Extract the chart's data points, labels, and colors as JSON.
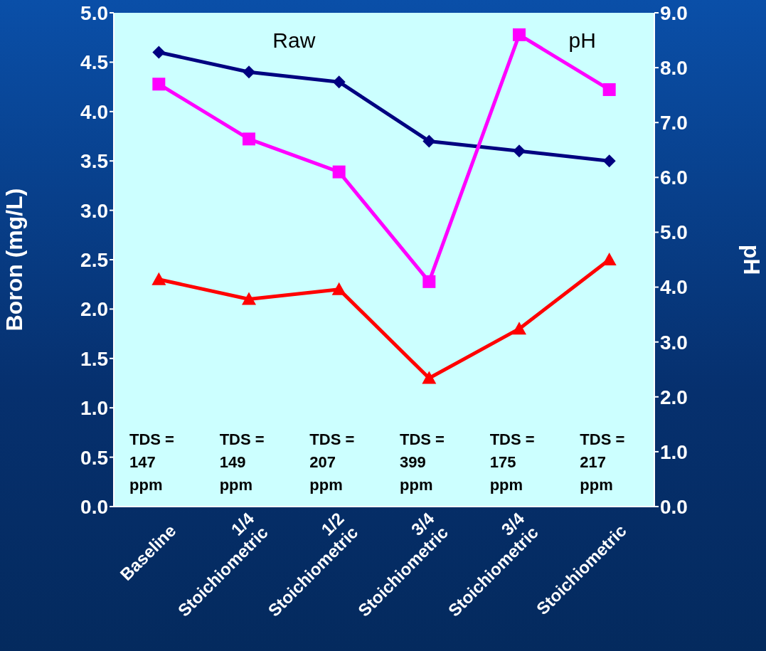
{
  "chart_data": {
    "type": "line",
    "categories": [
      "Baseline",
      "1/4 Stoichiometric",
      "1/2 Stoichiometric",
      "3/4 Stoichiometric",
      "3/4 Stoichiometric",
      "Stoichiometric"
    ],
    "ylabel": "Boron (mg/L)",
    "y2label": "pH",
    "ylim": [
      0,
      5
    ],
    "yticks": [
      {
        "value": 0,
        "label": "0.0"
      },
      {
        "value": 0.5,
        "label": "0.5"
      },
      {
        "value": 1,
        "label": "1.0"
      },
      {
        "value": 1.5,
        "label": "1.5"
      },
      {
        "value": 2,
        "label": "2.0"
      },
      {
        "value": 2.5,
        "label": "2.5"
      },
      {
        "value": 3,
        "label": "3.0"
      },
      {
        "value": 3.5,
        "label": "3.5"
      },
      {
        "value": 4,
        "label": "4.0"
      },
      {
        "value": 4.5,
        "label": "4.5"
      },
      {
        "value": 5,
        "label": "5.0"
      }
    ],
    "y2lim": [
      0,
      9
    ],
    "y2ticks": [
      {
        "value": 0,
        "label": "0.0"
      },
      {
        "value": 1,
        "label": "1.0"
      },
      {
        "value": 2,
        "label": "2.0"
      },
      {
        "value": 3,
        "label": "3.0"
      },
      {
        "value": 4,
        "label": "4.0"
      },
      {
        "value": 5,
        "label": "5.0"
      },
      {
        "value": 6,
        "label": "6.0"
      },
      {
        "value": 7,
        "label": "7.0"
      },
      {
        "value": 8,
        "label": "8.0"
      },
      {
        "value": 9,
        "label": "9.0"
      }
    ],
    "series": [
      {
        "name": "Raw",
        "color": "#000080",
        "marker": "diamond",
        "values": [
          4.6,
          4.4,
          4.3,
          3.7,
          3.6,
          3.5
        ]
      },
      {
        "name": "pH",
        "color": "#ff00ff",
        "marker": "square",
        "axis": "y2",
        "values": [
          7.7,
          6.7,
          6.1,
          4.1,
          8.6,
          7.6
        ]
      },
      {
        "color": "#ff0000",
        "marker": "triangle",
        "values": [
          2.3,
          2.1,
          2.2,
          1.3,
          1.8,
          2.5
        ]
      }
    ],
    "annotations": [
      "TDS = 147 ppm",
      "TDS = 149 ppm",
      "TDS = 207 ppm",
      "TDS = 399 ppm",
      "TDS = 175 ppm",
      "TDS = 217 ppm"
    ],
    "grid": false
  }
}
